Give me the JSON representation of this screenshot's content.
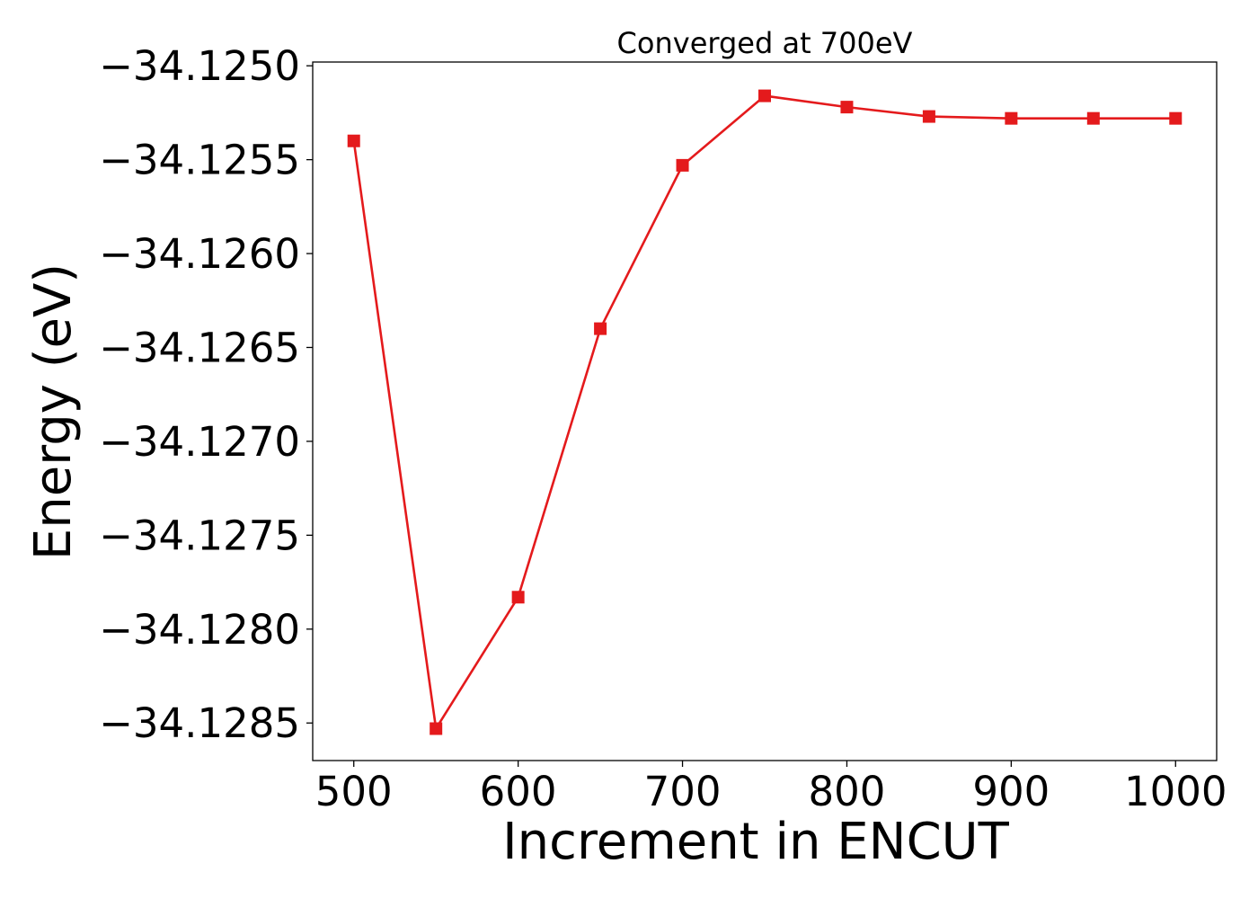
{
  "chart_data": {
    "type": "line",
    "title": "Converged at 700eV",
    "xlabel": "Increment in ENCUT",
    "ylabel": "Energy (eV)",
    "x": [
      500,
      550,
      600,
      650,
      700,
      750,
      800,
      850,
      900,
      950,
      1000
    ],
    "series": [
      {
        "values": [
          -34.1254,
          -34.12853,
          -34.12783,
          -34.1264,
          -34.12553,
          -34.12516,
          -34.12522,
          -34.12527,
          -34.12528,
          -34.12528,
          -34.12528
        ],
        "color": "#e41a1c",
        "marker": "square"
      }
    ],
    "xlim": [
      475,
      1025
    ],
    "ylim": [
      -34.1287,
      -34.12498
    ],
    "xticks": [
      500,
      600,
      700,
      800,
      900,
      1000
    ],
    "xtick_labels": [
      "500",
      "600",
      "700",
      "800",
      "900",
      "1000"
    ],
    "yticks": [
      -34.125,
      -34.1255,
      -34.126,
      -34.1265,
      -34.127,
      -34.1275,
      -34.128,
      -34.1285
    ],
    "ytick_labels": [
      "−34.1250",
      "−34.1255",
      "−34.1260",
      "−34.1265",
      "−34.1270",
      "−34.1275",
      "−34.1280",
      "−34.1285"
    ],
    "grid": false,
    "legend": "none"
  }
}
